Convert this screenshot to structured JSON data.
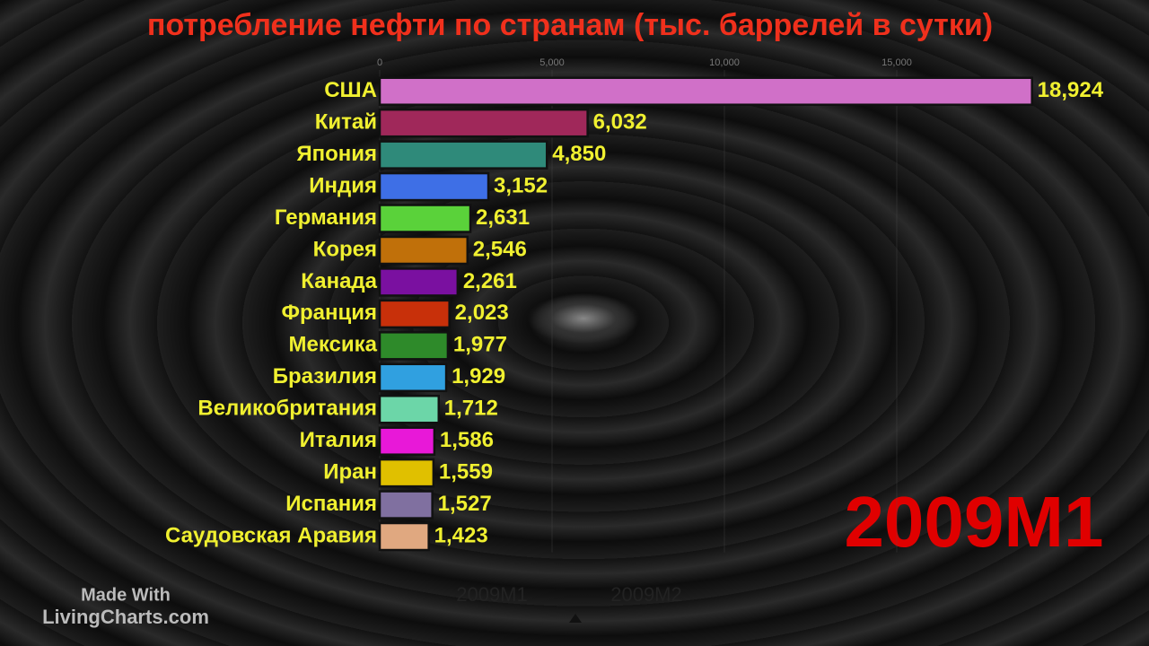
{
  "chart_data": {
    "type": "bar",
    "orientation": "horizontal",
    "title": "потребление нефти по странам (тыс. баррелей в сутки)",
    "categories": [
      "США",
      "Китай",
      "Япония",
      "Индия",
      "Германия",
      "Корея",
      "Канада",
      "Франция",
      "Мексика",
      "Бразилия",
      "Великобритания",
      "Италия",
      "Иран",
      "Испания",
      "Саудовская Аравия"
    ],
    "values": [
      18924,
      6032,
      4850,
      3152,
      2631,
      2546,
      2261,
      2023,
      1977,
      1929,
      1712,
      1586,
      1559,
      1527,
      1423
    ],
    "value_labels": [
      "18,924",
      "6,032",
      "4,850",
      "3,152",
      "2,631",
      "2,546",
      "2,261",
      "2,023",
      "1,977",
      "1,929",
      "1,712",
      "1,586",
      "1,559",
      "1,527",
      "1,423"
    ],
    "colors": [
      "#d070c8",
      "#a0285a",
      "#2f8a7a",
      "#3e6fe6",
      "#5ad23a",
      "#c0700a",
      "#7a10a0",
      "#c8300a",
      "#2e8a2a",
      "#30a0e0",
      "#6cd6a8",
      "#e818d8",
      "#e0c000",
      "#8070a0",
      "#e0a880"
    ],
    "xlim": [
      0,
      20000
    ],
    "xticks": [
      0,
      {
        "value": 5000,
        "label": "5,000"
      },
      {
        "value": 10000,
        "label": "10,000"
      },
      {
        "value": 15000,
        "label": "15,000"
      }
    ],
    "date_label": "2009M1",
    "timeline": [
      "2009M1",
      "2009M2"
    ],
    "watermark": [
      "Made With",
      "LivingCharts.com"
    ]
  }
}
